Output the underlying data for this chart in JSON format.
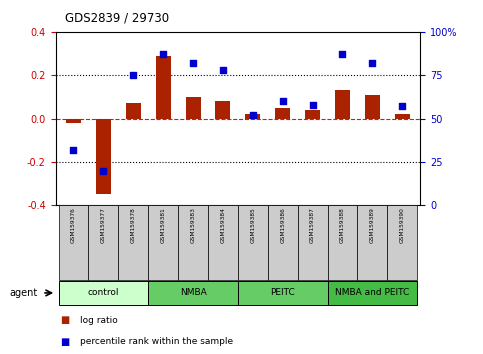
{
  "title": "GDS2839 / 29730",
  "samples": [
    "GSM159376",
    "GSM159377",
    "GSM159378",
    "GSM159381",
    "GSM159383",
    "GSM159384",
    "GSM159385",
    "GSM159386",
    "GSM159387",
    "GSM159388",
    "GSM159389",
    "GSM159390"
  ],
  "log_ratio": [
    -0.02,
    -0.35,
    0.07,
    0.29,
    0.1,
    0.08,
    0.02,
    0.05,
    0.04,
    0.13,
    0.11,
    0.02
  ],
  "percentile_rank": [
    32,
    20,
    75,
    87,
    82,
    78,
    52,
    60,
    58,
    87,
    82,
    57
  ],
  "bar_color": "#AA2200",
  "dot_color": "#0000CC",
  "ylim_left": [
    -0.4,
    0.4
  ],
  "ylim_right": [
    0,
    100
  ],
  "yticks_left": [
    -0.4,
    -0.2,
    0.0,
    0.2,
    0.4
  ],
  "yticks_right": [
    0,
    25,
    50,
    75,
    100
  ],
  "ytick_labels_right": [
    "0",
    "25",
    "50",
    "75",
    "100%"
  ],
  "groups": [
    {
      "label": "control",
      "start": 0,
      "end": 3,
      "color": "#ccffcc"
    },
    {
      "label": "NMBA",
      "start": 3,
      "end": 6,
      "color": "#66cc66"
    },
    {
      "label": "PEITC",
      "start": 6,
      "end": 9,
      "color": "#66cc66"
    },
    {
      "label": "NMBA and PEITC",
      "start": 9,
      "end": 12,
      "color": "#44bb44"
    }
  ],
  "agent_label": "agent",
  "legend_log_ratio": "log ratio",
  "legend_percentile": "percentile rank within the sample",
  "zero_line_color": "#CC2200",
  "label_bg": "#cccccc"
}
